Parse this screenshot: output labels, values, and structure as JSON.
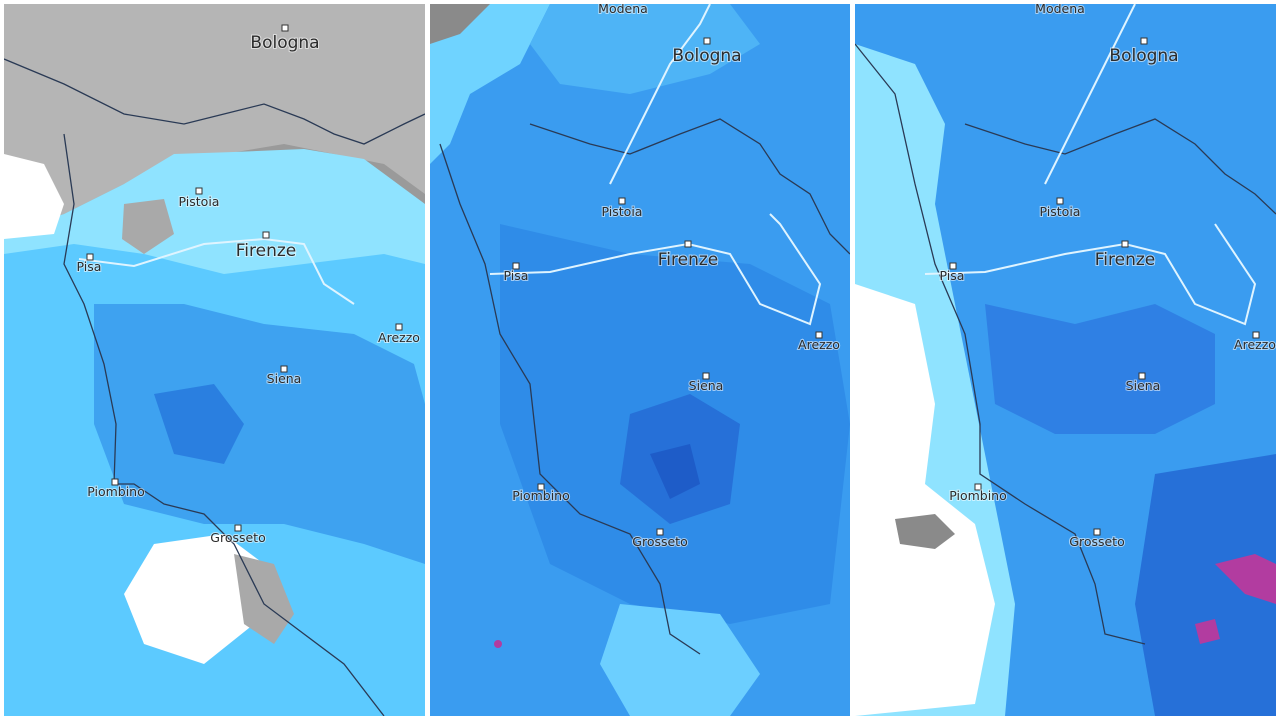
{
  "panels": [
    {
      "cities": [
        "Bologna",
        "Pistoia",
        "Firenze",
        "Pisa",
        "Arezzo",
        "Siena",
        "Piombino",
        "Grosseto"
      ]
    },
    {
      "cities": [
        "Modena",
        "Bologna",
        "Pistoia",
        "Firenze",
        "Pisa",
        "Arezzo",
        "Siena",
        "Piombino",
        "Grosseto"
      ]
    },
    {
      "cities": [
        "Modena",
        "Bologna",
        "Pistoia",
        "Firenze",
        "Pisa",
        "Arezzo",
        "Siena",
        "Piombino",
        "Grosseto"
      ]
    }
  ]
}
